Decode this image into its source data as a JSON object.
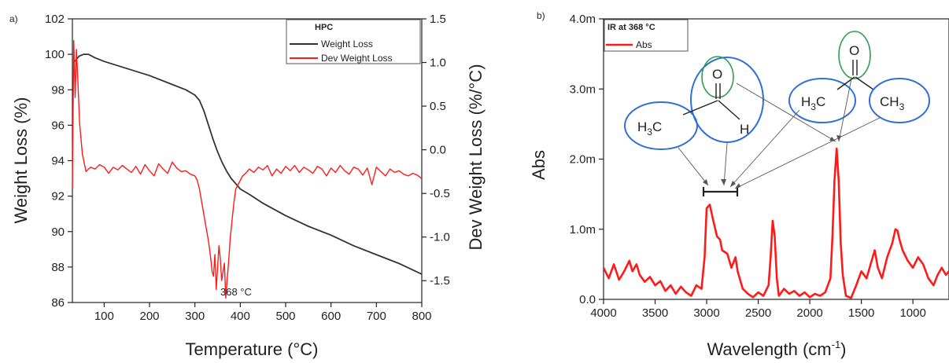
{
  "chart_data": [
    {
      "panel_tag": "a)",
      "type": "line",
      "xlabel": "Temperature (°C)",
      "ylabel": "Weight Loss (%)",
      "y2label": "Dev Weight Loss (%/°C)",
      "xlim": [
        30,
        800
      ],
      "ylim": [
        86,
        102
      ],
      "y2lim": [
        -1.75,
        1.5
      ],
      "xticks": [
        100,
        200,
        300,
        400,
        500,
        600,
        700,
        800
      ],
      "yticks": [
        86,
        88,
        90,
        92,
        94,
        96,
        98,
        100,
        102
      ],
      "y2ticks": [
        -1.5,
        -1.0,
        -0.5,
        0.0,
        0.5,
        1.0,
        1.5
      ],
      "y2tick_labels": [
        "-1.5",
        "-1.0",
        "-0.5",
        "0.0",
        "0.5",
        "1.0",
        "1.5"
      ],
      "legend_title": "HPC",
      "legend_position": "top-right",
      "annotation": "368 °C",
      "series": [
        {
          "name": "Weight Loss",
          "axis": "left",
          "color": "#333333",
          "x": [
            35,
            45,
            55,
            65,
            80,
            100,
            150,
            200,
            250,
            280,
            300,
            310,
            320,
            330,
            340,
            350,
            360,
            370,
            380,
            390,
            400,
            420,
            450,
            500,
            550,
            600,
            650,
            700,
            750,
            800
          ],
          "y": [
            99.6,
            99.9,
            100.0,
            100.0,
            99.8,
            99.6,
            99.2,
            98.8,
            98.3,
            98.0,
            97.7,
            97.4,
            96.8,
            96.0,
            95.2,
            94.5,
            93.9,
            93.4,
            93.0,
            92.7,
            92.4,
            92.1,
            91.6,
            90.9,
            90.3,
            89.8,
            89.2,
            88.7,
            88.2,
            87.6
          ]
        },
        {
          "name": "Dev Weight Loss",
          "axis": "right",
          "color": "#ff1a1a",
          "x": [
            30,
            33,
            36,
            39,
            42,
            46,
            52,
            60,
            70,
            80,
            90,
            100,
            110,
            120,
            130,
            140,
            150,
            160,
            170,
            180,
            190,
            200,
            210,
            220,
            230,
            240,
            250,
            260,
            270,
            280,
            290,
            300,
            305,
            310,
            315,
            320,
            325,
            330,
            335,
            338,
            341,
            344,
            347,
            350,
            353,
            356,
            359,
            362,
            365,
            368,
            371,
            374,
            378,
            382,
            386,
            390,
            395,
            400,
            405,
            410,
            415,
            420,
            430,
            440,
            450,
            460,
            470,
            480,
            490,
            500,
            510,
            520,
            530,
            540,
            550,
            560,
            570,
            580,
            590,
            600,
            610,
            620,
            630,
            640,
            650,
            660,
            670,
            680,
            690,
            700,
            710,
            720,
            730,
            740,
            750,
            760,
            770,
            780,
            790,
            800
          ],
          "y": [
            -0.45,
            1.25,
            0.6,
            1.15,
            0.8,
            0.3,
            -0.05,
            -0.25,
            -0.2,
            -0.22,
            -0.17,
            -0.2,
            -0.27,
            -0.2,
            -0.23,
            -0.18,
            -0.22,
            -0.26,
            -0.19,
            -0.28,
            -0.17,
            -0.24,
            -0.3,
            -0.16,
            -0.22,
            -0.27,
            -0.14,
            -0.21,
            -0.25,
            -0.24,
            -0.28,
            -0.3,
            -0.35,
            -0.45,
            -0.6,
            -0.75,
            -0.9,
            -1.05,
            -1.25,
            -1.4,
            -1.45,
            -1.2,
            -1.6,
            -1.35,
            -1.1,
            -1.25,
            -1.5,
            -1.4,
            -1.3,
            -1.7,
            -1.5,
            -1.3,
            -1.0,
            -0.8,
            -0.6,
            -0.45,
            -0.4,
            -0.35,
            -0.3,
            -0.28,
            -0.25,
            -0.22,
            -0.26,
            -0.2,
            -0.23,
            -0.18,
            -0.3,
            -0.22,
            -0.27,
            -0.19,
            -0.24,
            -0.18,
            -0.26,
            -0.2,
            -0.23,
            -0.27,
            -0.19,
            -0.22,
            -0.3,
            -0.21,
            -0.26,
            -0.18,
            -0.24,
            -0.28,
            -0.2,
            -0.22,
            -0.29,
            -0.21,
            -0.4,
            -0.2,
            -0.25,
            -0.3,
            -0.22,
            -0.26,
            -0.24,
            -0.28,
            -0.3,
            -0.27,
            -0.29,
            -0.33
          ]
        }
      ]
    },
    {
      "panel_tag": "b)",
      "type": "line",
      "xlabel": "Wavelength (cm-1)",
      "ylabel": "Abs",
      "xlim": [
        4000,
        650
      ],
      "ylim": [
        0,
        0.004
      ],
      "xticks": [
        4000,
        3500,
        3000,
        2500,
        2000,
        1500,
        1000
      ],
      "yticks": [
        0,
        0.001,
        0.002,
        0.003,
        0.004
      ],
      "ytick_labels": [
        "0.0",
        "1.0m",
        "2.0m",
        "3.0m",
        "4.0m"
      ],
      "legend_title": "IR at 368 °C",
      "legend_position": "top-left",
      "series": [
        {
          "name": "Abs",
          "color": "#ff1a1a",
          "x": [
            4000,
            3950,
            3900,
            3850,
            3800,
            3750,
            3720,
            3680,
            3650,
            3600,
            3550,
            3500,
            3450,
            3400,
            3350,
            3300,
            3250,
            3200,
            3150,
            3100,
            3050,
            3020,
            3000,
            2970,
            2940,
            2900,
            2870,
            2850,
            2800,
            2760,
            2720,
            2700,
            2650,
            2600,
            2550,
            2500,
            2450,
            2400,
            2380,
            2360,
            2340,
            2320,
            2300,
            2250,
            2200,
            2150,
            2100,
            2050,
            2000,
            1950,
            1900,
            1850,
            1800,
            1780,
            1760,
            1740,
            1720,
            1700,
            1680,
            1650,
            1600,
            1550,
            1500,
            1450,
            1400,
            1370,
            1340,
            1300,
            1250,
            1200,
            1170,
            1150,
            1130,
            1100,
            1050,
            1000,
            950,
            900,
            850,
            800,
            760,
            720,
            680,
            650
          ],
          "y": [
            0.00045,
            0.0003,
            0.0005,
            0.00028,
            0.0004,
            0.00055,
            0.0004,
            0.0005,
            0.00035,
            0.00025,
            0.00032,
            0.0002,
            0.00026,
            0.00012,
            0.0002,
            8e-05,
            0.00018,
            0.0001,
            5e-05,
            0.0002,
            0.00015,
            0.0006,
            0.0013,
            0.00135,
            0.00115,
            0.0009,
            0.00085,
            0.0007,
            0.00065,
            0.00045,
            0.0006,
            0.0004,
            0.00015,
            8e-05,
            3e-05,
            0.0001,
            5e-05,
            0.0002,
            0.0006,
            0.00112,
            0.0009,
            0.0003,
            5e-05,
            0.00015,
            8e-05,
            0.00012,
            5e-05,
            0.0001,
            3e-05,
            8e-05,
            5e-05,
            0.0001,
            0.0003,
            0.0009,
            0.0017,
            0.00215,
            0.0017,
            0.0008,
            0.00035,
            5e-05,
            2e-05,
            0.0002,
            0.0004,
            0.0003,
            0.00055,
            0.0007,
            0.00045,
            0.0003,
            0.0006,
            0.0008,
            0.001,
            0.00098,
            0.00085,
            0.0007,
            0.00055,
            0.00045,
            0.0006,
            0.0005,
            0.0003,
            0.0002,
            0.00035,
            0.00045,
            0.00035,
            0.0004
          ]
        }
      ],
      "bracket_range": [
        3050,
        2700
      ],
      "molecules": [
        {
          "name": "acetaldehyde",
          "left_group": "H3C",
          "carbonyl_o": "O",
          "right_group": "H"
        },
        {
          "name": "acetone",
          "left_group": "H3C",
          "carbonyl_o": "O",
          "right_group": "CH3"
        }
      ]
    }
  ],
  "colors": {
    "weight_loss": "#333333",
    "dev_weight_loss": "#ff1a1a",
    "ir_abs": "#ff1a1a",
    "ellipse_blue": "#2f6fd6",
    "ellipse_green": "#2e9d4f"
  }
}
